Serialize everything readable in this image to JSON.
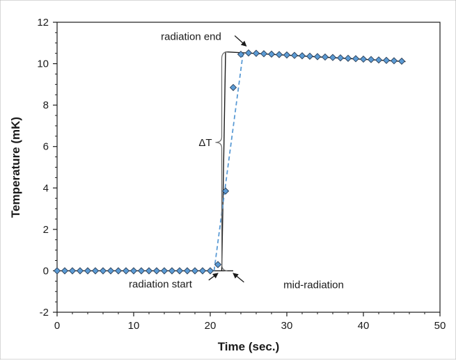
{
  "chart_data": {
    "type": "scatter",
    "title": "",
    "xlabel": "Time (sec.)",
    "ylabel": "Temperature (mK)",
    "xlim": [
      0,
      50
    ],
    "ylim": [
      -2,
      12
    ],
    "x_ticks": [
      0,
      10,
      20,
      30,
      40,
      50
    ],
    "y_ticks": [
      -2,
      0,
      2,
      4,
      6,
      8,
      10,
      12
    ],
    "grid": false,
    "legend": "none",
    "series": [
      {
        "marker": "diamond",
        "marker_color": "#5b9bd5",
        "points": [
          [
            0,
            0
          ],
          [
            1,
            0
          ],
          [
            2,
            0
          ],
          [
            3,
            0
          ],
          [
            4,
            0
          ],
          [
            5,
            0
          ],
          [
            6,
            0
          ],
          [
            7,
            0
          ],
          [
            8,
            0
          ],
          [
            9,
            0
          ],
          [
            10,
            0
          ],
          [
            11,
            0
          ],
          [
            12,
            0
          ],
          [
            13,
            0
          ],
          [
            14,
            0
          ],
          [
            15,
            0
          ],
          [
            16,
            0
          ],
          [
            17,
            0
          ],
          [
            18,
            0
          ],
          [
            19,
            0
          ],
          [
            20,
            0
          ],
          [
            21,
            0.3
          ],
          [
            22,
            3.85
          ],
          [
            23,
            8.85
          ],
          [
            24,
            10.45
          ],
          [
            25,
            10.52
          ],
          [
            26,
            10.5
          ],
          [
            27,
            10.48
          ],
          [
            28,
            10.46
          ],
          [
            29,
            10.44
          ],
          [
            30,
            10.42
          ],
          [
            31,
            10.4
          ],
          [
            32,
            10.38
          ],
          [
            33,
            10.36
          ],
          [
            34,
            10.34
          ],
          [
            35,
            10.32
          ],
          [
            36,
            10.3
          ],
          [
            37,
            10.28
          ],
          [
            38,
            10.26
          ],
          [
            39,
            10.24
          ],
          [
            40,
            10.22
          ],
          [
            41,
            10.2
          ],
          [
            42,
            10.18
          ],
          [
            43,
            10.16
          ],
          [
            44,
            10.14
          ],
          [
            45,
            10.12
          ]
        ]
      }
    ],
    "fit_lines": [
      {
        "style": "solid",
        "color": "#1a1a1a",
        "from": [
          0,
          0
        ],
        "to": [
          23,
          0
        ]
      },
      {
        "style": "solid",
        "color": "#1a1a1a",
        "from": [
          21.5,
          0
        ],
        "to": [
          22,
          10.55
        ]
      },
      {
        "style": "solid",
        "color": "#1a1a1a",
        "from": [
          22,
          10.57
        ],
        "to": [
          45.5,
          10.1
        ]
      },
      {
        "style": "dashed",
        "color": "#5b9bd5",
        "from": [
          20.5,
          0
        ],
        "to": [
          24.3,
          10.55
        ]
      }
    ],
    "annotations": {
      "radiation_end": "radiation end",
      "radiation_start": "radiation start",
      "mid_radiation": "mid-radiation",
      "delta_t": "ΔT"
    }
  }
}
